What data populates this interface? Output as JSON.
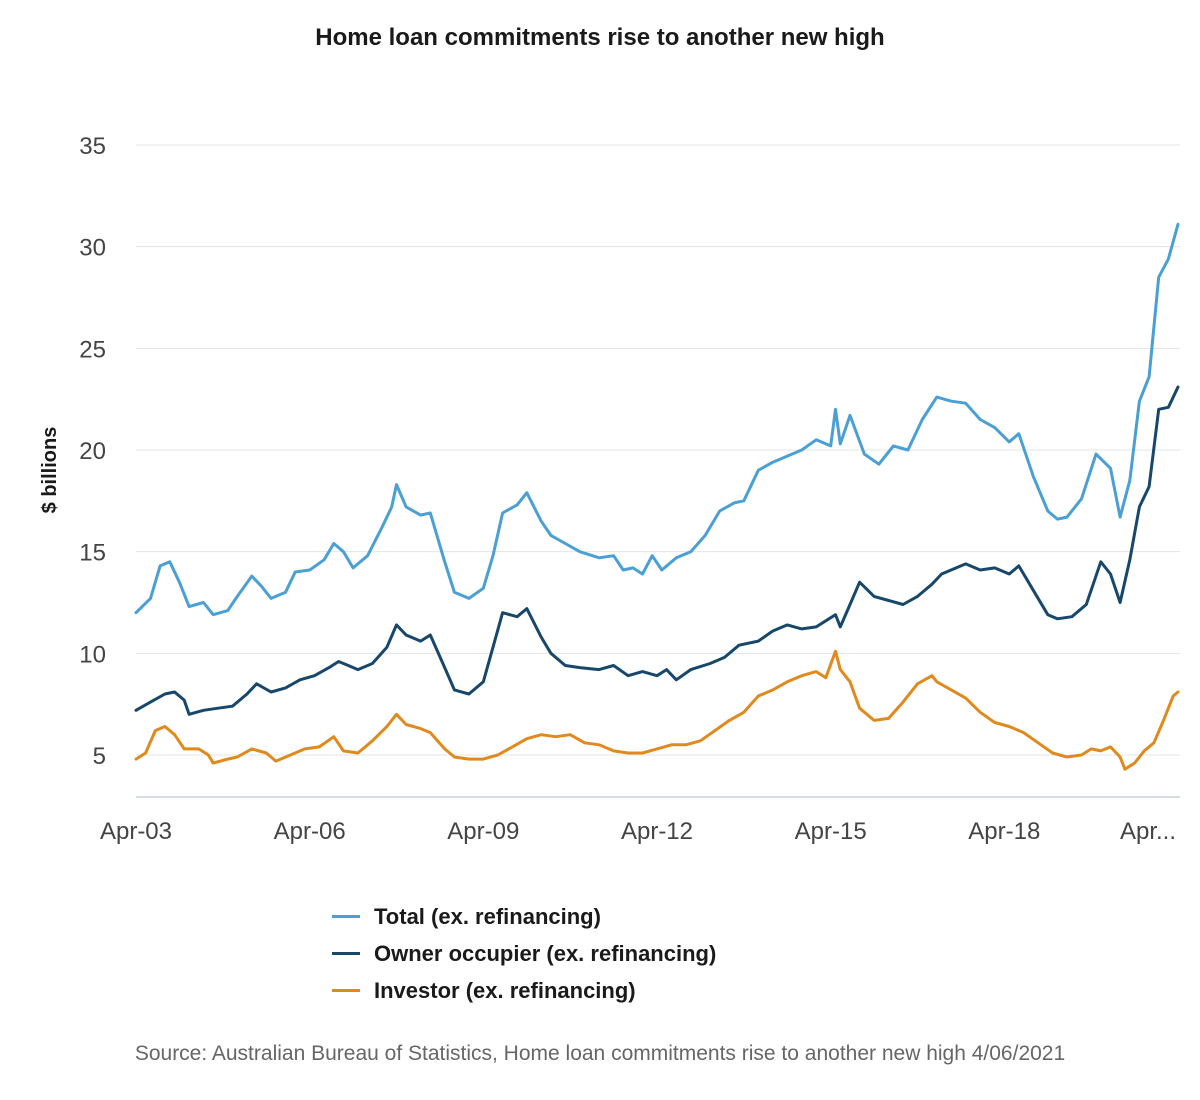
{
  "title": "Home loan commitments rise to another new high",
  "source": "Source: Australian Bureau of Statistics, Home loan commitments rise to another new high 4/06/2021",
  "chart_data": {
    "type": "line",
    "title": "Home loan commitments rise to another new high",
    "xlabel": "",
    "ylabel": "$ billions",
    "ylim": [
      3,
      35
    ],
    "yticks": [
      5,
      10,
      15,
      20,
      25,
      30,
      35
    ],
    "xticks": [
      "Apr-03",
      "Apr-06",
      "Apr-09",
      "Apr-12",
      "Apr-15",
      "Apr-18",
      "Apr..."
    ],
    "x_start": "Apr-2003",
    "x_end": "Apr-2021",
    "frequency": "monthly",
    "grid": "horizontal",
    "legend_position": "bottom",
    "series": [
      {
        "name": "Total (ex. refinancing)",
        "color": "#4a9fd4",
        "points": [
          [
            "2003-04",
            12.0
          ],
          [
            "2003-07",
            12.7
          ],
          [
            "2003-09",
            14.3
          ],
          [
            "2003-11",
            14.5
          ],
          [
            "2004-01",
            13.5
          ],
          [
            "2004-03",
            12.3
          ],
          [
            "2004-06",
            12.5
          ],
          [
            "2004-08",
            11.9
          ],
          [
            "2004-11",
            12.1
          ],
          [
            "2005-01",
            12.8
          ],
          [
            "2005-04",
            13.8
          ],
          [
            "2005-06",
            13.3
          ],
          [
            "2005-08",
            12.7
          ],
          [
            "2005-11",
            13.0
          ],
          [
            "2006-01",
            14.0
          ],
          [
            "2006-04",
            14.1
          ],
          [
            "2006-07",
            14.6
          ],
          [
            "2006-09",
            15.4
          ],
          [
            "2006-11",
            15.0
          ],
          [
            "2007-01",
            14.2
          ],
          [
            "2007-04",
            14.8
          ],
          [
            "2007-07",
            16.2
          ],
          [
            "2007-09",
            17.2
          ],
          [
            "2007-10",
            18.3
          ],
          [
            "2007-12",
            17.2
          ],
          [
            "2008-03",
            16.8
          ],
          [
            "2008-05",
            16.9
          ],
          [
            "2008-08",
            14.5
          ],
          [
            "2008-10",
            13.0
          ],
          [
            "2009-01",
            12.7
          ],
          [
            "2009-04",
            13.2
          ],
          [
            "2009-06",
            14.8
          ],
          [
            "2009-08",
            16.9
          ],
          [
            "2009-11",
            17.3
          ],
          [
            "2010-01",
            17.9
          ],
          [
            "2010-04",
            16.5
          ],
          [
            "2010-06",
            15.8
          ],
          [
            "2010-09",
            15.4
          ],
          [
            "2010-12",
            15.0
          ],
          [
            "2011-04",
            14.7
          ],
          [
            "2011-07",
            14.8
          ],
          [
            "2011-09",
            14.1
          ],
          [
            "2011-11",
            14.2
          ],
          [
            "2012-01",
            13.9
          ],
          [
            "2012-03",
            14.8
          ],
          [
            "2012-05",
            14.1
          ],
          [
            "2012-08",
            14.7
          ],
          [
            "2012-11",
            15.0
          ],
          [
            "2013-02",
            15.8
          ],
          [
            "2013-05",
            17.0
          ],
          [
            "2013-08",
            17.4
          ],
          [
            "2013-10",
            17.5
          ],
          [
            "2014-01",
            19.0
          ],
          [
            "2014-04",
            19.4
          ],
          [
            "2014-07",
            19.7
          ],
          [
            "2014-10",
            20.0
          ],
          [
            "2015-01",
            20.5
          ],
          [
            "2015-04",
            20.2
          ],
          [
            "2015-05",
            22.0
          ],
          [
            "2015-06",
            20.3
          ],
          [
            "2015-08",
            21.7
          ],
          [
            "2015-11",
            19.8
          ],
          [
            "2016-02",
            19.3
          ],
          [
            "2016-05",
            20.2
          ],
          [
            "2016-08",
            20.0
          ],
          [
            "2016-11",
            21.5
          ],
          [
            "2017-02",
            22.6
          ],
          [
            "2017-05",
            22.4
          ],
          [
            "2017-08",
            22.3
          ],
          [
            "2017-11",
            21.5
          ],
          [
            "2018-02",
            21.1
          ],
          [
            "2018-05",
            20.4
          ],
          [
            "2018-07",
            20.8
          ],
          [
            "2018-10",
            18.7
          ],
          [
            "2019-01",
            17.0
          ],
          [
            "2019-03",
            16.6
          ],
          [
            "2019-05",
            16.7
          ],
          [
            "2019-08",
            17.6
          ],
          [
            "2019-11",
            19.8
          ],
          [
            "2020-02",
            19.1
          ],
          [
            "2020-04",
            16.7
          ],
          [
            "2020-06",
            18.5
          ],
          [
            "2020-08",
            22.4
          ],
          [
            "2020-10",
            23.6
          ],
          [
            "2020-12",
            28.5
          ],
          [
            "2021-02",
            29.4
          ],
          [
            "2021-04",
            31.1
          ]
        ]
      },
      {
        "name": "Owner occupier (ex. refinancing)",
        "color": "#17476b",
        "points": [
          [
            "2003-04",
            7.2
          ],
          [
            "2003-07",
            7.6
          ],
          [
            "2003-10",
            8.0
          ],
          [
            "2003-12",
            8.1
          ],
          [
            "2004-02",
            7.7
          ],
          [
            "2004-03",
            7.0
          ],
          [
            "2004-06",
            7.2
          ],
          [
            "2004-09",
            7.3
          ],
          [
            "2004-12",
            7.4
          ],
          [
            "2005-03",
            8.0
          ],
          [
            "2005-05",
            8.5
          ],
          [
            "2005-08",
            8.1
          ],
          [
            "2005-11",
            8.3
          ],
          [
            "2006-02",
            8.7
          ],
          [
            "2006-05",
            8.9
          ],
          [
            "2006-08",
            9.3
          ],
          [
            "2006-10",
            9.6
          ],
          [
            "2006-12",
            9.4
          ],
          [
            "2007-02",
            9.2
          ],
          [
            "2007-05",
            9.5
          ],
          [
            "2007-08",
            10.3
          ],
          [
            "2007-10",
            11.4
          ],
          [
            "2007-12",
            10.9
          ],
          [
            "2008-03",
            10.6
          ],
          [
            "2008-05",
            10.9
          ],
          [
            "2008-08",
            9.3
          ],
          [
            "2008-10",
            8.2
          ],
          [
            "2009-01",
            8.0
          ],
          [
            "2009-04",
            8.6
          ],
          [
            "2009-06",
            10.3
          ],
          [
            "2009-08",
            12.0
          ],
          [
            "2009-11",
            11.8
          ],
          [
            "2010-01",
            12.2
          ],
          [
            "2010-04",
            10.8
          ],
          [
            "2010-06",
            10.0
          ],
          [
            "2010-09",
            9.4
          ],
          [
            "2010-12",
            9.3
          ],
          [
            "2011-04",
            9.2
          ],
          [
            "2011-07",
            9.4
          ],
          [
            "2011-10",
            8.9
          ],
          [
            "2012-01",
            9.1
          ],
          [
            "2012-04",
            8.9
          ],
          [
            "2012-06",
            9.2
          ],
          [
            "2012-08",
            8.7
          ],
          [
            "2012-11",
            9.2
          ],
          [
            "2013-03",
            9.5
          ],
          [
            "2013-06",
            9.8
          ],
          [
            "2013-09",
            10.4
          ],
          [
            "2014-01",
            10.6
          ],
          [
            "2014-04",
            11.1
          ],
          [
            "2014-07",
            11.4
          ],
          [
            "2014-10",
            11.2
          ],
          [
            "2015-01",
            11.3
          ],
          [
            "2015-05",
            11.9
          ],
          [
            "2015-06",
            11.3
          ],
          [
            "2015-08",
            12.4
          ],
          [
            "2015-10",
            13.5
          ],
          [
            "2016-01",
            12.8
          ],
          [
            "2016-04",
            12.6
          ],
          [
            "2016-07",
            12.4
          ],
          [
            "2016-10",
            12.8
          ],
          [
            "2017-01",
            13.4
          ],
          [
            "2017-03",
            13.9
          ],
          [
            "2017-06",
            14.2
          ],
          [
            "2017-08",
            14.4
          ],
          [
            "2017-11",
            14.1
          ],
          [
            "2018-02",
            14.2
          ],
          [
            "2018-05",
            13.9
          ],
          [
            "2018-07",
            14.3
          ],
          [
            "2018-10",
            13.1
          ],
          [
            "2019-01",
            11.9
          ],
          [
            "2019-03",
            11.7
          ],
          [
            "2019-06",
            11.8
          ],
          [
            "2019-09",
            12.4
          ],
          [
            "2019-12",
            14.5
          ],
          [
            "2020-02",
            13.9
          ],
          [
            "2020-04",
            12.5
          ],
          [
            "2020-06",
            14.6
          ],
          [
            "2020-08",
            17.2
          ],
          [
            "2020-10",
            18.2
          ],
          [
            "2020-12",
            22.0
          ],
          [
            "2021-02",
            22.1
          ],
          [
            "2021-04",
            23.1
          ]
        ]
      },
      {
        "name": "Investor (ex. refinancing)",
        "color": "#e08a1e",
        "points": [
          [
            "2003-04",
            4.8
          ],
          [
            "2003-06",
            5.1
          ],
          [
            "2003-08",
            6.2
          ],
          [
            "2003-10",
            6.4
          ],
          [
            "2003-12",
            6.0
          ],
          [
            "2004-02",
            5.3
          ],
          [
            "2004-05",
            5.3
          ],
          [
            "2004-07",
            5.0
          ],
          [
            "2004-08",
            4.6
          ],
          [
            "2004-11",
            4.8
          ],
          [
            "2005-01",
            4.9
          ],
          [
            "2005-04",
            5.3
          ],
          [
            "2005-07",
            5.1
          ],
          [
            "2005-09",
            4.7
          ],
          [
            "2005-12",
            5.0
          ],
          [
            "2006-03",
            5.3
          ],
          [
            "2006-06",
            5.4
          ],
          [
            "2006-09",
            5.9
          ],
          [
            "2006-11",
            5.2
          ],
          [
            "2007-02",
            5.1
          ],
          [
            "2007-05",
            5.7
          ],
          [
            "2007-08",
            6.4
          ],
          [
            "2007-10",
            7.0
          ],
          [
            "2007-12",
            6.5
          ],
          [
            "2008-03",
            6.3
          ],
          [
            "2008-05",
            6.1
          ],
          [
            "2008-08",
            5.3
          ],
          [
            "2008-10",
            4.9
          ],
          [
            "2009-01",
            4.8
          ],
          [
            "2009-04",
            4.8
          ],
          [
            "2009-07",
            5.0
          ],
          [
            "2009-10",
            5.4
          ],
          [
            "2010-01",
            5.8
          ],
          [
            "2010-04",
            6.0
          ],
          [
            "2010-07",
            5.9
          ],
          [
            "2010-10",
            6.0
          ],
          [
            "2011-01",
            5.6
          ],
          [
            "2011-04",
            5.5
          ],
          [
            "2011-07",
            5.2
          ],
          [
            "2011-10",
            5.1
          ],
          [
            "2012-01",
            5.1
          ],
          [
            "2012-04",
            5.3
          ],
          [
            "2012-07",
            5.5
          ],
          [
            "2012-10",
            5.5
          ],
          [
            "2013-01",
            5.7
          ],
          [
            "2013-04",
            6.2
          ],
          [
            "2013-07",
            6.7
          ],
          [
            "2013-10",
            7.1
          ],
          [
            "2014-01",
            7.9
          ],
          [
            "2014-04",
            8.2
          ],
          [
            "2014-07",
            8.6
          ],
          [
            "2014-10",
            8.9
          ],
          [
            "2015-01",
            9.1
          ],
          [
            "2015-03",
            8.8
          ],
          [
            "2015-05",
            10.1
          ],
          [
            "2015-06",
            9.2
          ],
          [
            "2015-08",
            8.6
          ],
          [
            "2015-10",
            7.3
          ],
          [
            "2016-01",
            6.7
          ],
          [
            "2016-04",
            6.8
          ],
          [
            "2016-07",
            7.6
          ],
          [
            "2016-10",
            8.5
          ],
          [
            "2017-01",
            8.9
          ],
          [
            "2017-02",
            8.6
          ],
          [
            "2017-05",
            8.2
          ],
          [
            "2017-08",
            7.8
          ],
          [
            "2017-11",
            7.1
          ],
          [
            "2018-02",
            6.6
          ],
          [
            "2018-05",
            6.4
          ],
          [
            "2018-08",
            6.1
          ],
          [
            "2018-11",
            5.6
          ],
          [
            "2019-02",
            5.1
          ],
          [
            "2019-05",
            4.9
          ],
          [
            "2019-08",
            5.0
          ],
          [
            "2019-10",
            5.3
          ],
          [
            "2019-12",
            5.2
          ],
          [
            "2020-02",
            5.4
          ],
          [
            "2020-04",
            4.9
          ],
          [
            "2020-05",
            4.3
          ],
          [
            "2020-07",
            4.6
          ],
          [
            "2020-09",
            5.2
          ],
          [
            "2020-11",
            5.6
          ],
          [
            "2021-01",
            6.7
          ],
          [
            "2021-03",
            7.9
          ],
          [
            "2021-04",
            8.1
          ]
        ]
      }
    ]
  }
}
